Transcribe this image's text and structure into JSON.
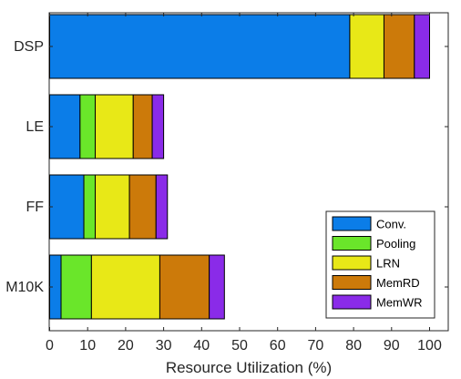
{
  "chart_data": {
    "type": "bar",
    "orientation": "horizontal",
    "stacked": true,
    "categories": [
      "DSP",
      "LE",
      "FF",
      "M10K"
    ],
    "xlabel": "Resource Utilization (%)",
    "ylabel": "",
    "xlim": [
      0,
      100
    ],
    "xticks": [
      0,
      10,
      20,
      30,
      40,
      50,
      60,
      70,
      80,
      90,
      100
    ],
    "grid": false,
    "legend_position": "bottom-right",
    "series": [
      {
        "name": "Conv.",
        "color": "#0B7DE8",
        "values": [
          79,
          8,
          9,
          3
        ]
      },
      {
        "name": "Pooling",
        "color": "#6AE62A",
        "values": [
          0,
          4,
          3,
          8
        ]
      },
      {
        "name": "LRN",
        "color": "#E8E817",
        "values": [
          9,
          10,
          9,
          18
        ]
      },
      {
        "name": "MemRD",
        "color": "#CC7A0A",
        "values": [
          8,
          5,
          7,
          13
        ]
      },
      {
        "name": "MemWR",
        "color": "#8A2BE8",
        "values": [
          4,
          3,
          3,
          4
        ]
      }
    ]
  }
}
